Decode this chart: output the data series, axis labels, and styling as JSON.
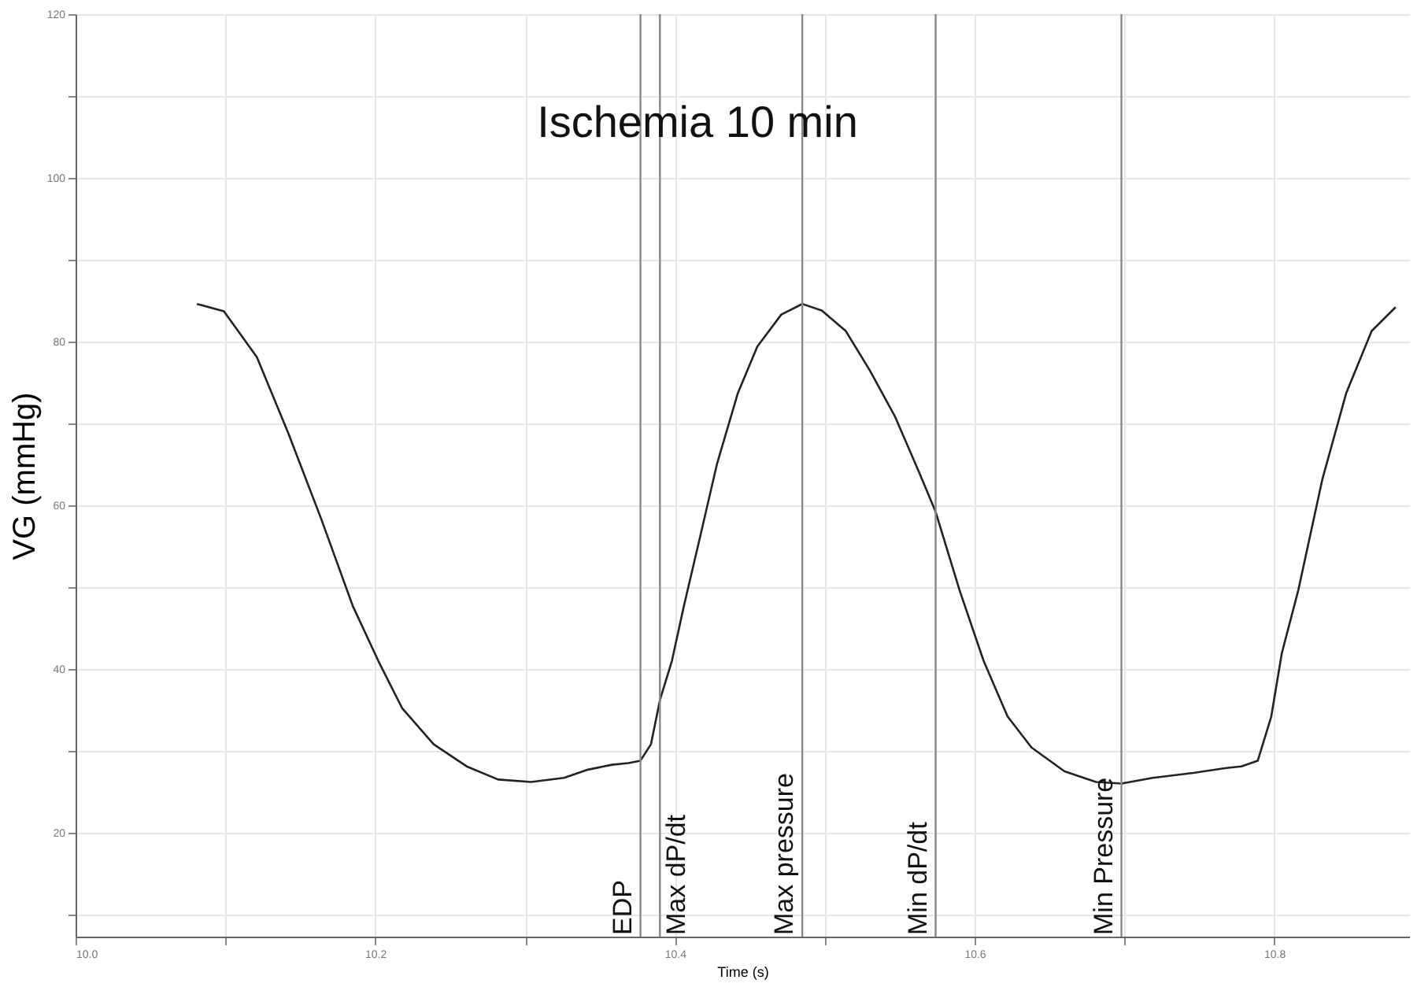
{
  "chart_data": {
    "type": "line",
    "title": "Ischemia 10 min",
    "xlabel": "Time (s)",
    "ylabel": "VG (mmHg)",
    "xlim": [
      10.0,
      10.89
    ],
    "ylim": [
      7.3,
      120
    ],
    "xticks": [
      {
        "value": 10.0,
        "label": "10.0"
      },
      {
        "value": 10.1,
        "label": null
      },
      10.2,
      {
        "value": 10.3,
        "label": null
      },
      10.4,
      {
        "value": 10.5,
        "label": null
      },
      10.6,
      {
        "value": 10.7,
        "label": null
      },
      10.8
    ],
    "yticks": [
      {
        "value": 10,
        "label": null
      },
      20,
      {
        "value": 30,
        "label": null
      },
      40,
      {
        "value": 50,
        "label": null
      },
      60,
      {
        "value": 70,
        "label": null
      },
      80,
      {
        "value": 90,
        "label": null
      },
      100,
      {
        "value": 110,
        "label": null
      },
      120
    ],
    "grid": true,
    "marker": "none",
    "line_style": "solid",
    "series": [
      {
        "color": "#222222",
        "x": [
          10.081,
          10.099,
          10.121,
          10.142,
          10.164,
          10.185,
          10.202,
          10.218,
          10.239,
          10.261,
          10.282,
          10.304,
          10.326,
          10.342,
          10.358,
          10.369,
          10.377,
          10.384,
          10.39,
          10.398,
          10.406,
          10.417,
          10.428,
          10.442,
          10.455,
          10.471,
          10.485,
          10.498,
          10.514,
          10.53,
          10.547,
          10.563,
          10.574,
          10.59,
          10.606,
          10.622,
          10.638,
          10.66,
          10.681,
          10.698,
          10.719,
          10.746,
          10.768,
          10.778,
          10.789,
          10.798,
          10.805,
          10.816,
          10.832,
          10.848,
          10.865,
          10.881
        ],
        "values": [
          84.6,
          83.7,
          78.1,
          68.8,
          58.3,
          47.7,
          41.0,
          35.2,
          30.8,
          28.1,
          26.5,
          26.2,
          26.7,
          27.7,
          28.3,
          28.5,
          28.8,
          30.8,
          36.2,
          41.0,
          47.7,
          56.3,
          65.0,
          73.7,
          79.4,
          83.3,
          84.6,
          83.8,
          81.3,
          76.5,
          70.8,
          64.0,
          59.2,
          49.6,
          41.0,
          34.2,
          30.4,
          27.5,
          26.2,
          26.0,
          26.7,
          27.3,
          27.9,
          28.1,
          28.8,
          34.2,
          41.9,
          49.6,
          63.1,
          73.7,
          81.3,
          84.2
        ]
      }
    ],
    "ref_lines": [
      {
        "axis": "x",
        "value": 10.377,
        "label": "EDP",
        "color": "#888888"
      },
      {
        "axis": "x",
        "value": 10.39,
        "label": "Max dP/dt",
        "color": "#888888"
      },
      {
        "axis": "x",
        "value": 10.485,
        "label": "Max pressure",
        "color": "#888888"
      },
      {
        "axis": "x",
        "value": 10.574,
        "label": "Min dP/dt",
        "color": "#888888"
      },
      {
        "axis": "x",
        "value": 10.698,
        "label": "Min Pressure",
        "color": "#888888"
      }
    ]
  }
}
